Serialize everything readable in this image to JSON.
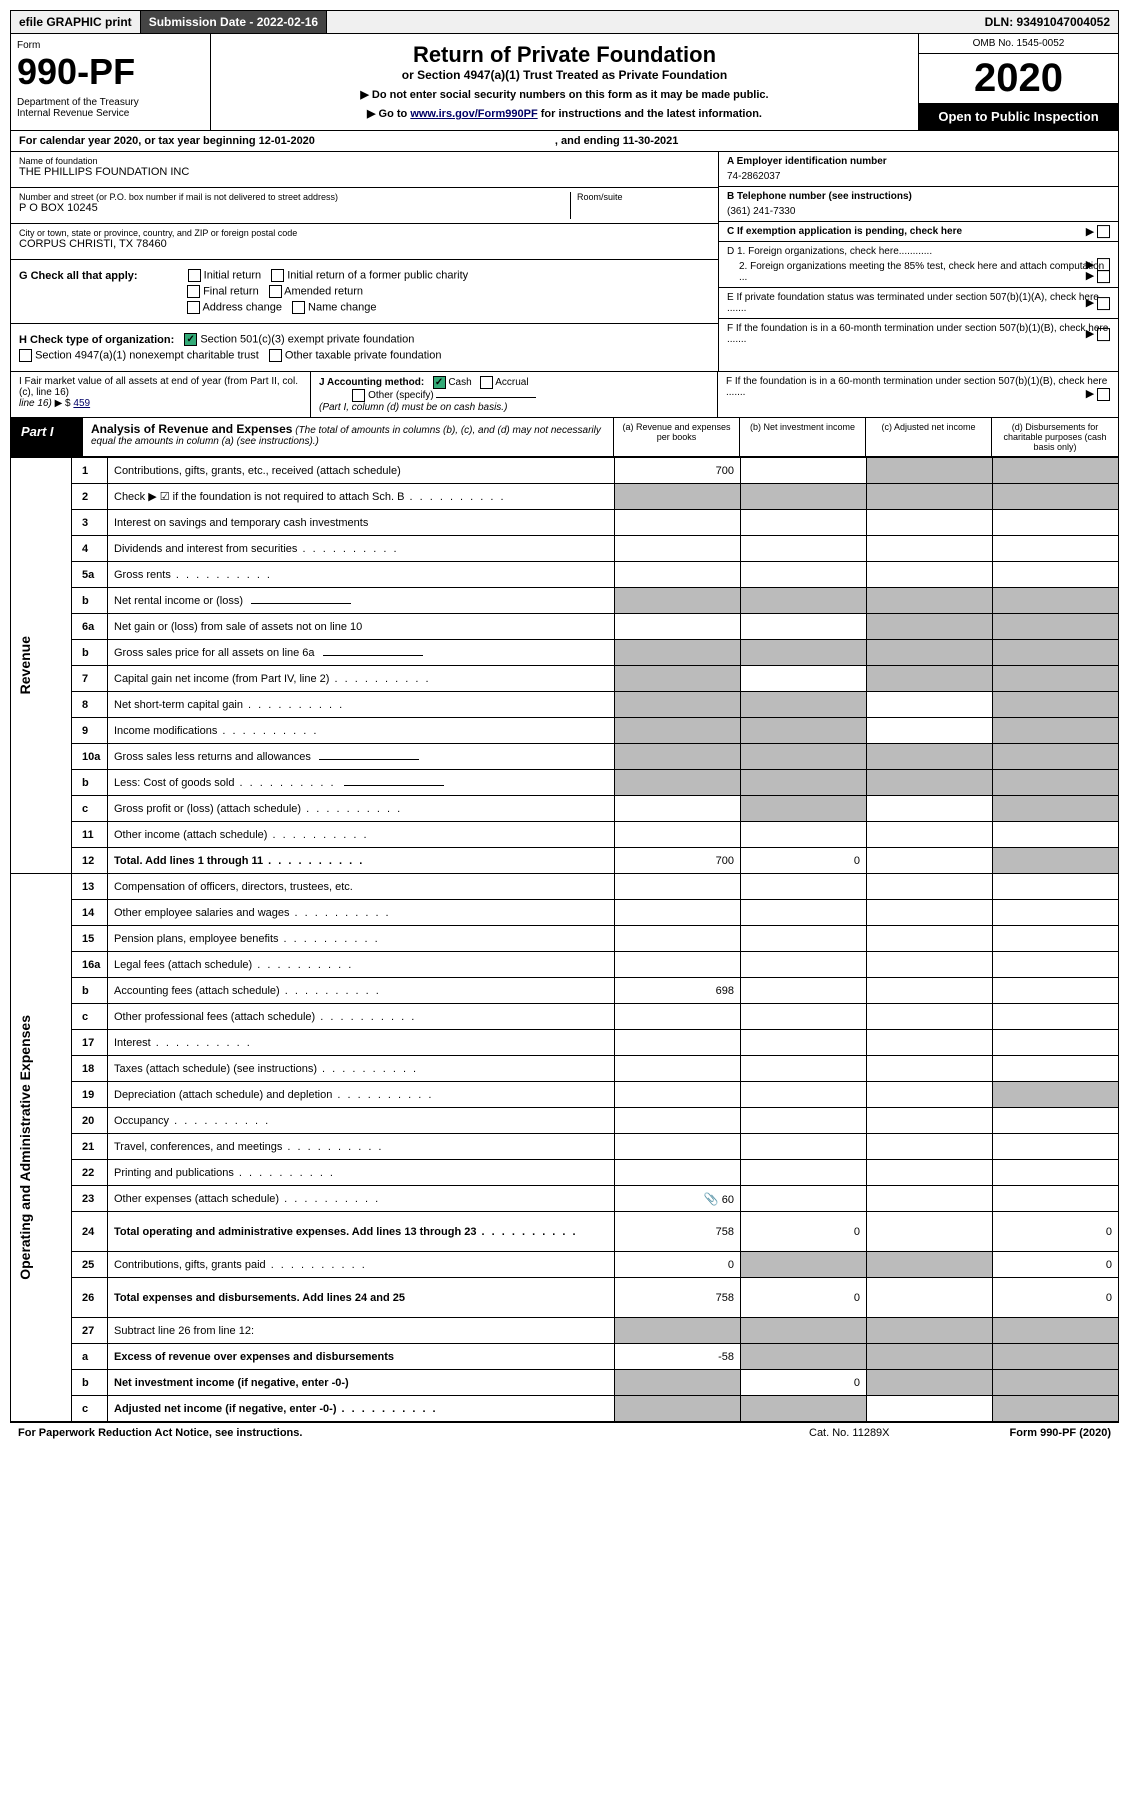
{
  "topbar": {
    "efile": "efile GRAPHIC print",
    "sub_label": "Submission Date - 2022-02-16",
    "dln": "DLN: 93491047004052"
  },
  "header": {
    "form_label": "Form",
    "form_no": "990-PF",
    "dept": "Department of the Treasury\nInternal Revenue Service",
    "title": "Return of Private Foundation",
    "subtitle": "or Section 4947(a)(1) Trust Treated as Private Foundation",
    "note1": "▶ Do not enter social security numbers on this form as it may be made public.",
    "note2": "▶ Go to www.irs.gov/Form990PF for instructions and the latest information.",
    "link_text": "www.irs.gov/Form990PF",
    "omb": "OMB No. 1545-0052",
    "year": "2020",
    "open": "Open to Public Inspection"
  },
  "calendar": {
    "text1": "For calendar year 2020, or tax year beginning 12-01-2020",
    "text2": ", and ending 11-30-2021"
  },
  "org": {
    "name_lbl": "Name of foundation",
    "name": "THE PHILLIPS FOUNDATION INC",
    "addr_lbl": "Number and street (or P.O. box number if mail is not delivered to street address)",
    "addr": "P O BOX 10245",
    "room_lbl": "Room/suite",
    "city_lbl": "City or town, state or province, country, and ZIP or foreign postal code",
    "city": "CORPUS CHRISTI, TX  78460",
    "ein_lbl": "A Employer identification number",
    "ein": "74-2862037",
    "tel_lbl": "B Telephone number (see instructions)",
    "tel": "(361) 241-7330",
    "c_lbl": "C If exemption application is pending, check here"
  },
  "checks": {
    "g_lbl": "G Check all that apply:",
    "initial": "Initial return",
    "initial_former": "Initial return of a former public charity",
    "final": "Final return",
    "amended": "Amended return",
    "addr_change": "Address change",
    "name_change": "Name change",
    "h_lbl": "H Check type of organization:",
    "h1": "Section 501(c)(3) exempt private foundation",
    "h2": "Section 4947(a)(1) nonexempt charitable trust",
    "h3": "Other taxable private foundation",
    "i_lbl": "I Fair market value of all assets at end of year (from Part II, col. (c), line 16)",
    "i_val": "459",
    "j_lbl": "J Accounting method:",
    "j_cash": "Cash",
    "j_accrual": "Accrual",
    "j_other": "Other (specify)",
    "j_note": "(Part I, column (d) must be on cash basis.)",
    "d1": "D 1. Foreign organizations, check here............",
    "d2": "2. Foreign organizations meeting the 85% test, check here and attach computation ...",
    "e": "E  If private foundation status was terminated under section 507(b)(1)(A), check here .......",
    "f": "F  If the foundation is in a 60-month termination under section 507(b)(1)(B), check here ......."
  },
  "part1": {
    "label": "Part I",
    "title": "Analysis of Revenue and Expenses",
    "note": "(The total of amounts in columns (b), (c), and (d) may not necessarily equal the amounts in column (a) (see instructions).)",
    "cols": {
      "a": "(a) Revenue and expenses per books",
      "b": "(b) Net investment income",
      "c": "(c) Adjusted net income",
      "d": "(d) Disbursements for charitable purposes (cash basis only)"
    }
  },
  "side_labels": {
    "revenue": "Revenue",
    "expenses": "Operating and Administrative Expenses"
  },
  "rows": [
    {
      "n": "1",
      "t": "Contributions, gifts, grants, etc., received (attach schedule)",
      "a": "700",
      "grey_b": false,
      "grey_c": true,
      "grey_d": true
    },
    {
      "n": "2",
      "t": "Check ▶ ☑ if the foundation is not required to attach Sch. B",
      "grey_a": true,
      "grey_b": true,
      "grey_c": true,
      "grey_d": true,
      "dots": true
    },
    {
      "n": "3",
      "t": "Interest on savings and temporary cash investments"
    },
    {
      "n": "4",
      "t": "Dividends and interest from securities",
      "dots": true
    },
    {
      "n": "5a",
      "t": "Gross rents",
      "dots": true
    },
    {
      "n": "b",
      "t": "Net rental income or (loss)",
      "sub": true,
      "grey_a": true,
      "grey_b": true,
      "grey_c": true,
      "grey_d": true
    },
    {
      "n": "6a",
      "t": "Net gain or (loss) from sale of assets not on line 10",
      "grey_c": true,
      "grey_d": true
    },
    {
      "n": "b",
      "t": "Gross sales price for all assets on line 6a",
      "sub": true,
      "grey_a": true,
      "grey_b": true,
      "grey_c": true,
      "grey_d": true
    },
    {
      "n": "7",
      "t": "Capital gain net income (from Part IV, line 2)",
      "dots": true,
      "grey_a": true,
      "grey_c": true,
      "grey_d": true
    },
    {
      "n": "8",
      "t": "Net short-term capital gain",
      "dots": true,
      "grey_a": true,
      "grey_b": true,
      "grey_d": true
    },
    {
      "n": "9",
      "t": "Income modifications",
      "dots": true,
      "grey_a": true,
      "grey_b": true,
      "grey_d": true
    },
    {
      "n": "10a",
      "t": "Gross sales less returns and allowances",
      "sub": true,
      "grey_a": true,
      "grey_b": true,
      "grey_c": true,
      "grey_d": true
    },
    {
      "n": "b",
      "t": "Less: Cost of goods sold",
      "dots": true,
      "sub": true,
      "grey_a": true,
      "grey_b": true,
      "grey_c": true,
      "grey_d": true
    },
    {
      "n": "c",
      "t": "Gross profit or (loss) (attach schedule)",
      "dots": true,
      "grey_b": true,
      "grey_d": true
    },
    {
      "n": "11",
      "t": "Other income (attach schedule)",
      "dots": true
    },
    {
      "n": "12",
      "t": "Total. Add lines 1 through 11",
      "dots": true,
      "bold": true,
      "a": "700",
      "b": "0",
      "grey_d": true
    },
    {
      "n": "13",
      "t": "Compensation of officers, directors, trustees, etc."
    },
    {
      "n": "14",
      "t": "Other employee salaries and wages",
      "dots": true
    },
    {
      "n": "15",
      "t": "Pension plans, employee benefits",
      "dots": true
    },
    {
      "n": "16a",
      "t": "Legal fees (attach schedule)",
      "dots": true
    },
    {
      "n": "b",
      "t": "Accounting fees (attach schedule)",
      "dots": true,
      "a": "698"
    },
    {
      "n": "c",
      "t": "Other professional fees (attach schedule)",
      "dots": true
    },
    {
      "n": "17",
      "t": "Interest",
      "dots": true
    },
    {
      "n": "18",
      "t": "Taxes (attach schedule) (see instructions)",
      "dots": true
    },
    {
      "n": "19",
      "t": "Depreciation (attach schedule) and depletion",
      "dots": true,
      "grey_d": true
    },
    {
      "n": "20",
      "t": "Occupancy",
      "dots": true
    },
    {
      "n": "21",
      "t": "Travel, conferences, and meetings",
      "dots": true
    },
    {
      "n": "22",
      "t": "Printing and publications",
      "dots": true
    },
    {
      "n": "23",
      "t": "Other expenses (attach schedule)",
      "dots": true,
      "a": "60",
      "icon": true
    },
    {
      "n": "24",
      "t": "Total operating and administrative expenses. Add lines 13 through 23",
      "dots": true,
      "bold": true,
      "a": "758",
      "b": "0",
      "d": "0",
      "tall": true
    },
    {
      "n": "25",
      "t": "Contributions, gifts, grants paid",
      "dots": true,
      "a": "0",
      "grey_b": true,
      "grey_c": true,
      "d": "0"
    },
    {
      "n": "26",
      "t": "Total expenses and disbursements. Add lines 24 and 25",
      "bold": true,
      "a": "758",
      "b": "0",
      "d": "0",
      "tall": true
    },
    {
      "n": "27",
      "t": "Subtract line 26 from line 12:",
      "grey_a": true,
      "grey_b": true,
      "grey_c": true,
      "grey_d": true
    },
    {
      "n": "a",
      "t": "Excess of revenue over expenses and disbursements",
      "bold": true,
      "a": "-58",
      "grey_b": true,
      "grey_c": true,
      "grey_d": true
    },
    {
      "n": "b",
      "t": "Net investment income (if negative, enter -0-)",
      "bold": true,
      "grey_a": true,
      "b": "0",
      "grey_c": true,
      "grey_d": true
    },
    {
      "n": "c",
      "t": "Adjusted net income (if negative, enter -0-)",
      "dots": true,
      "bold": true,
      "grey_a": true,
      "grey_b": true,
      "grey_d": true
    }
  ],
  "footer": {
    "left": "For Paperwork Reduction Act Notice, see instructions.",
    "cat": "Cat. No. 11289X",
    "right": "Form 990-PF (2020)"
  },
  "colors": {
    "grey": "#bbbbbb",
    "black": "#000000",
    "link": "#000066",
    "check": "#33aa77"
  }
}
